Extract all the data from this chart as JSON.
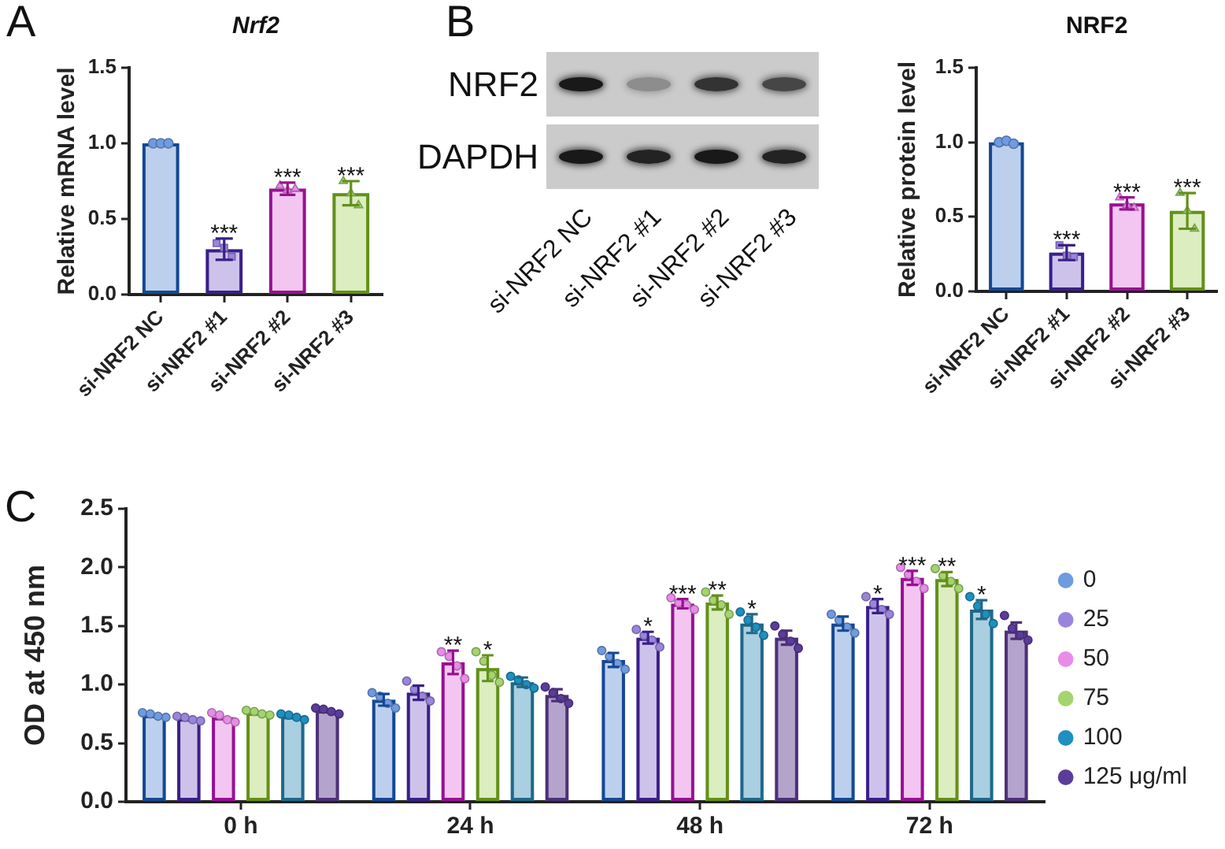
{
  "chart_data": [
    {
      "type": "bar",
      "title": "Nrf2",
      "ylabel": "Relative mRNA level",
      "annotations": [
        "A"
      ],
      "categories": [
        "si-NRF2 NC",
        "si-NRF2 #1",
        "si-NRF2 #2",
        "si-NRF2 #3"
      ],
      "series": [
        {
          "type": "bar",
          "colors": [
            "#bcd0ee",
            "#cdc3ea",
            "#f3c6f1",
            "#dcedc0"
          ],
          "values": [
            1.0,
            0.3,
            0.7,
            0.67
          ],
          "errors": [
            null,
            0.07,
            0.04,
            0.08
          ],
          "value_labels": [
            null,
            "***",
            "***",
            "***"
          ]
        },
        {
          "type": "scatter",
          "x": [
            "si-NRF2 NC",
            "si-NRF2 NC",
            "si-NRF2 NC"
          ],
          "values": [
            1.0,
            1.0,
            1.0
          ],
          "color": "#6f9be0",
          "marker": "circle"
        },
        {
          "type": "scatter",
          "x": [
            "si-NRF2 #1",
            "si-NRF2 #1",
            "si-NRF2 #1"
          ],
          "values": [
            0.34,
            0.31,
            0.25
          ],
          "color": "#9b85dc",
          "marker": "square"
        },
        {
          "type": "scatter",
          "x": [
            "si-NRF2 #2",
            "si-NRF2 #2",
            "si-NRF2 #2"
          ],
          "values": [
            0.72,
            0.69,
            0.7
          ],
          "color": "#e88ce8",
          "marker": "triangle"
        },
        {
          "type": "scatter",
          "x": [
            "si-NRF2 #3",
            "si-NRF2 #3",
            "si-NRF2 #3"
          ],
          "values": [
            0.75,
            0.67,
            0.59
          ],
          "color": "#a3d46e",
          "marker": "triangle"
        }
      ],
      "ylim": [
        0,
        1.5
      ],
      "yticks": [
        {
          "value": 0,
          "label": "0.0"
        },
        0.5,
        {
          "value": 1,
          "label": "1.0"
        },
        1.5
      ]
    },
    {
      "type": "other",
      "annotations": [
        "B"
      ],
      "categories": [
        "si-NRF2 NC",
        "si-NRF2 #1",
        "si-NRF2 #2",
        "si-NRF2 #3"
      ],
      "y_categories": [
        "NRF2",
        "DAPDH"
      ]
    },
    {
      "type": "bar",
      "title": "NRF2",
      "ylabel": "Relative protein level",
      "categories": [
        "si-NRF2 NC",
        "si-NRF2 #1",
        "si-NRF2 #2",
        "si-NRF2 #3"
      ],
      "series": [
        {
          "type": "bar",
          "colors": [
            "#bcd0ee",
            "#cdc3ea",
            "#f3c6f1",
            "#dcedc0"
          ],
          "values": [
            1.0,
            0.26,
            0.59,
            0.54
          ],
          "errors": [
            null,
            0.05,
            0.04,
            0.12
          ],
          "value_labels": [
            null,
            "***",
            "***",
            "***"
          ]
        },
        {
          "type": "scatter",
          "x": [
            "si-NRF2 NC",
            "si-NRF2 NC",
            "si-NRF2 NC"
          ],
          "values": [
            1.0,
            1.01,
            0.99
          ],
          "color": "#6f9be0",
          "marker": "circle"
        },
        {
          "type": "scatter",
          "x": [
            "si-NRF2 #1",
            "si-NRF2 #1",
            "si-NRF2 #1"
          ],
          "values": [
            0.31,
            0.24,
            0.23
          ],
          "color": "#9b85dc",
          "marker": "square"
        },
        {
          "type": "scatter",
          "x": [
            "si-NRF2 #2",
            "si-NRF2 #2",
            "si-NRF2 #2"
          ],
          "values": [
            0.63,
            0.58,
            0.56
          ],
          "color": "#e88ce8",
          "marker": "triangle"
        },
        {
          "type": "scatter",
          "x": [
            "si-NRF2 #3",
            "si-NRF2 #3",
            "si-NRF2 #3"
          ],
          "values": [
            0.66,
            0.54,
            0.42
          ],
          "color": "#a3d46e",
          "marker": "triangle"
        }
      ],
      "ylim": [
        0,
        1.5
      ],
      "yticks": [
        {
          "value": 0,
          "label": "0.0"
        },
        0.5,
        {
          "value": 1,
          "label": "1.0"
        },
        1.5
      ]
    },
    {
      "type": "bar",
      "ylabel": "OD at 450 nm",
      "annotations": [
        "C"
      ],
      "categories": [
        "0 h",
        "24 h",
        "48 h",
        "72 h"
      ],
      "legend": "right",
      "series": [
        {
          "color": "#bcd0ee",
          "values": [
            0.74,
            0.87,
            1.21,
            1.52
          ],
          "errors": [
            null,
            0.05,
            0.06,
            0.06
          ]
        },
        {
          "color": "#cdc3ea",
          "values": [
            0.71,
            0.93,
            1.4,
            1.67
          ],
          "errors": [
            null,
            0.06,
            0.05,
            0.06
          ],
          "value_labels": [
            null,
            null,
            "*",
            "*"
          ]
        },
        {
          "color": "#f3c6f1",
          "values": [
            0.72,
            1.19,
            1.69,
            1.91
          ],
          "errors": [
            null,
            0.1,
            0.04,
            0.06
          ],
          "value_labels": [
            null,
            "**",
            "***",
            "***"
          ]
        },
        {
          "color": "#dcedc0",
          "values": [
            0.76,
            1.14,
            1.7,
            1.9
          ],
          "errors": [
            null,
            0.11,
            0.06,
            0.06
          ],
          "value_labels": [
            null,
            "*",
            "**",
            "**"
          ]
        },
        {
          "color": "#a9cfe0",
          "values": [
            0.73,
            1.02,
            1.52,
            1.64
          ],
          "errors": [
            null,
            0.04,
            0.08,
            0.08
          ],
          "value_labels": [
            null,
            null,
            "*",
            "*"
          ]
        },
        {
          "color": "#b4a4cc",
          "values": [
            0.78,
            0.91,
            1.4,
            1.46
          ],
          "errors": [
            null,
            0.05,
            0.06,
            0.07
          ]
        },
        {
          "type": "scatter",
          "name": "0",
          "color": "#6f9be0",
          "marker": "circle",
          "x": [
            "0 h",
            "0 h",
            "0 h",
            "0 h",
            "24 h",
            "24 h",
            "24 h",
            "24 h",
            "48 h",
            "48 h",
            "48 h",
            "48 h",
            "72 h",
            "72 h",
            "72 h",
            "72 h"
          ],
          "values": [
            0.76,
            0.75,
            0.73,
            0.72,
            0.93,
            0.9,
            0.84,
            0.8,
            1.29,
            1.24,
            1.18,
            1.13,
            1.6,
            1.55,
            1.49,
            1.44
          ]
        },
        {
          "type": "scatter",
          "name": "25",
          "color": "#9b85dc",
          "marker": "circle",
          "x": [
            "0 h",
            "0 h",
            "0 h",
            "0 h",
            "24 h",
            "24 h",
            "24 h",
            "24 h",
            "48 h",
            "48 h",
            "48 h",
            "48 h",
            "72 h",
            "72 h",
            "72 h",
            "72 h"
          ],
          "values": [
            0.73,
            0.72,
            0.7,
            0.69,
            1.03,
            0.96,
            0.9,
            0.86,
            1.47,
            1.42,
            1.38,
            1.32,
            1.75,
            1.69,
            1.64,
            1.6
          ]
        },
        {
          "type": "scatter",
          "name": "50",
          "color": "#e88ce8",
          "marker": "circle",
          "x": [
            "0 h",
            "0 h",
            "0 h",
            "0 h",
            "24 h",
            "24 h",
            "24 h",
            "24 h",
            "48 h",
            "48 h",
            "48 h",
            "48 h",
            "72 h",
            "72 h",
            "72 h",
            "72 h"
          ],
          "values": [
            0.76,
            0.74,
            0.7,
            0.68,
            1.28,
            1.24,
            1.16,
            1.05,
            1.74,
            1.7,
            1.68,
            1.64,
            2.0,
            1.94,
            1.88,
            1.82
          ]
        },
        {
          "type": "scatter",
          "name": "75",
          "color": "#a3d46e",
          "marker": "circle",
          "x": [
            "0 h",
            "0 h",
            "0 h",
            "0 h",
            "24 h",
            "24 h",
            "24 h",
            "24 h",
            "48 h",
            "48 h",
            "48 h",
            "48 h",
            "72 h",
            "72 h",
            "72 h",
            "72 h"
          ],
          "values": [
            0.78,
            0.77,
            0.75,
            0.74,
            1.28,
            1.2,
            1.08,
            1.02,
            1.79,
            1.72,
            1.68,
            1.6,
            1.99,
            1.93,
            1.88,
            1.82
          ]
        },
        {
          "type": "scatter",
          "name": "100",
          "color": "#1e8fbf",
          "marker": "circle",
          "x": [
            "0 h",
            "0 h",
            "0 h",
            "0 h",
            "24 h",
            "24 h",
            "24 h",
            "24 h",
            "48 h",
            "48 h",
            "48 h",
            "48 h",
            "72 h",
            "72 h",
            "72 h",
            "72 h"
          ],
          "values": [
            0.75,
            0.74,
            0.72,
            0.7,
            1.07,
            1.04,
            1.0,
            0.97,
            1.62,
            1.55,
            1.49,
            1.42,
            1.75,
            1.67,
            1.6,
            1.52
          ]
        },
        {
          "type": "scatter",
          "name": "125 μg/ml",
          "color": "#5b3c9b",
          "marker": "circle",
          "x": [
            "0 h",
            "0 h",
            "0 h",
            "0 h",
            "24 h",
            "24 h",
            "24 h",
            "24 h",
            "48 h",
            "48 h",
            "48 h",
            "48 h",
            "72 h",
            "72 h",
            "72 h",
            "72 h"
          ],
          "values": [
            0.8,
            0.79,
            0.77,
            0.75,
            0.98,
            0.93,
            0.88,
            0.84,
            1.5,
            1.43,
            1.37,
            1.31,
            1.59,
            1.48,
            1.42,
            1.38
          ]
        }
      ],
      "ylim": [
        0,
        2.5
      ],
      "yticks": [
        {
          "value": 0,
          "label": "0.0"
        },
        0.5,
        {
          "value": 1,
          "label": "1.0"
        },
        1.5,
        {
          "value": 2,
          "label": "2.0"
        },
        2.5
      ]
    }
  ]
}
